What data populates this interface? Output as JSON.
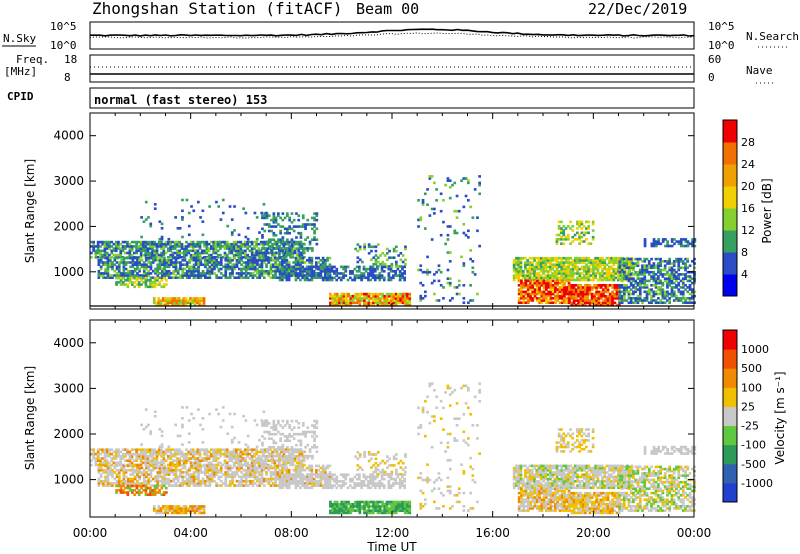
{
  "header": {
    "station": "Zhongshan Station (fitACF)",
    "beam": "Beam 00",
    "date": "22/Dec/2019"
  },
  "nsky_panel": {
    "left_label": "N.Sky",
    "right_label": "N.Search",
    "yticks_left": [
      "10^5",
      "10^0"
    ],
    "yticks_right": [
      "10^5",
      "10^0"
    ]
  },
  "freq_panel": {
    "left_label_1": "Freq.",
    "left_label_2": "[MHz]",
    "right_label": "Nave",
    "yticks_left": [
      "18",
      "8"
    ],
    "yticks_right": [
      "60",
      "0"
    ]
  },
  "cpid": {
    "label": "CPID",
    "text": "normal (fast stereo) 153"
  },
  "chart_data": [
    {
      "type": "heatmap",
      "quantity": "Power",
      "ylabel": "Slant Range [km]",
      "ylim": [
        180,
        4500
      ],
      "yticks": [
        "1000",
        "2000",
        "3000",
        "4000"
      ],
      "xlim_hours": [
        0,
        24
      ],
      "xticks": [
        "00:00",
        "04:00",
        "08:00",
        "12:00",
        "16:00",
        "20:00",
        "00:00"
      ],
      "colorbar": {
        "label": "Power [dB]",
        "ticks": [
          "4",
          "8",
          "12",
          "16",
          "20",
          "24",
          "28"
        ],
        "colors": [
          "#0000f0",
          "#2a4cc4",
          "#36a060",
          "#84d030",
          "#f0d000",
          "#f0a000",
          "#f07000",
          "#f00000"
        ]
      }
    },
    {
      "type": "heatmap",
      "quantity": "Velocity",
      "ylabel": "Slant Range [km]",
      "ylim": [
        180,
        4500
      ],
      "yticks": [
        "1000",
        "2000",
        "3000",
        "4000"
      ],
      "xlim_hours": [
        0,
        24
      ],
      "xticks": [
        "00:00",
        "04:00",
        "08:00",
        "12:00",
        "16:00",
        "20:00",
        "00:00"
      ],
      "xlabel": "Time UT",
      "colorbar": {
        "label": "Velocity [m s⁻¹]",
        "ticks": [
          "1000",
          "500",
          "100",
          "25",
          "-25",
          "-100",
          "-500",
          "-1000"
        ],
        "colors": [
          "#2040d0",
          "#3060b0",
          "#2e9a5a",
          "#60c840",
          "#c8c8c8",
          "#f0c000",
          "#f08a00",
          "#f05000",
          "#f00000"
        ]
      }
    }
  ]
}
